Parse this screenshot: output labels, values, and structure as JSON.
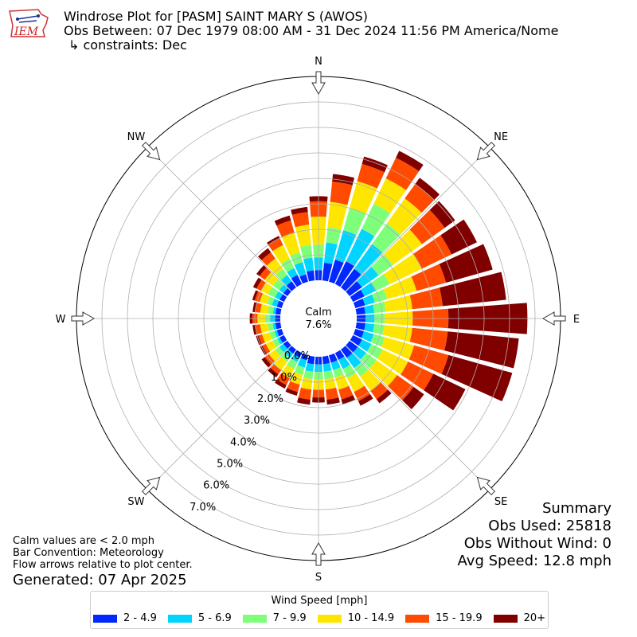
{
  "header": {
    "title": "Windrose Plot for [PASM] SAINT MARY S (AWOS)",
    "obs_between": "Obs Between: 07 Dec 1979 08:00 AM - 31 Dec 2024 11:56 PM America/Nome",
    "constraints": "↳ constraints: Dec"
  },
  "logo": {
    "text": "IEM"
  },
  "summary": {
    "title": "Summary",
    "obs_used": "Obs Used: 25818",
    "obs_without_wind": "Obs Without Wind: 0",
    "avg_speed": "Avg Speed: 12.8 mph"
  },
  "notes": {
    "calm_note": "Calm values are < 2.0 mph",
    "bar_convention": "Bar Convention: Meteorology",
    "flow_note": "Flow arrows relative to plot center."
  },
  "generated": "Generated: 07 Apr 2025",
  "chart_data": {
    "type": "windrose",
    "calm": {
      "label": "Calm",
      "value_text": "7.6%",
      "value": 7.6
    },
    "directions": [
      "N",
      "NW",
      "W",
      "SW",
      "S",
      "SE",
      "E",
      "NE"
    ],
    "radial_labels": [
      "0.0%",
      "1.0%",
      "2.0%",
      "3.0%",
      "4.0%",
      "5.0%",
      "6.0%",
      "7.0%"
    ],
    "radial_ticks": [
      0,
      1,
      2,
      3,
      4,
      5,
      6,
      7
    ],
    "rmax": 8.0,
    "legend_title": "Wind Speed [mph]",
    "bins": [
      {
        "label": "2 - 4.9",
        "color": "#0028ff"
      },
      {
        "label": "5 - 6.9",
        "color": "#00d4ff"
      },
      {
        "label": "7 - 9.9",
        "color": "#7dff7a"
      },
      {
        "label": "10 - 14.9",
        "color": "#ffe600"
      },
      {
        "label": "15 - 19.9",
        "color": "#ff4a00"
      },
      {
        "label": "20+",
        "color": "#800000"
      }
    ],
    "sectors_deg": [
      0,
      10,
      20,
      30,
      40,
      50,
      60,
      70,
      80,
      90,
      100,
      110,
      120,
      130,
      140,
      150,
      160,
      170,
      180,
      190,
      200,
      210,
      220,
      230,
      240,
      250,
      260,
      270,
      280,
      290,
      300,
      310,
      320,
      330,
      340,
      350
    ],
    "cumulative": [
      [
        0.4,
        0.9,
        1.4,
        2.5,
        3.1,
        3.3
      ],
      [
        0.7,
        1.5,
        2.1,
        3.1,
        3.9,
        4.2
      ],
      [
        0.9,
        2.1,
        3.0,
        4.1,
        4.8,
        5.1
      ],
      [
        1.0,
        2.4,
        3.5,
        4.6,
        5.5,
        5.8
      ],
      [
        0.9,
        2.1,
        3.1,
        4.3,
        5.0,
        5.3
      ],
      [
        0.6,
        1.4,
        2.1,
        3.5,
        4.6,
        5.1
      ],
      [
        0.5,
        1.0,
        1.6,
        3.0,
        4.3,
        5.4
      ],
      [
        0.4,
        0.8,
        1.3,
        2.5,
        3.7,
        5.6
      ],
      [
        0.35,
        0.7,
        1.15,
        2.2,
        3.4,
        5.9
      ],
      [
        0.35,
        0.7,
        1.1,
        2.2,
        3.6,
        6.7
      ],
      [
        0.35,
        0.7,
        1.1,
        2.2,
        3.6,
        6.4
      ],
      [
        0.35,
        0.75,
        1.2,
        2.4,
        3.8,
        6.4
      ],
      [
        0.4,
        0.8,
        1.3,
        2.4,
        3.5,
        4.9
      ],
      [
        0.4,
        0.8,
        1.3,
        2.3,
        3.1,
        3.6
      ],
      [
        0.4,
        0.9,
        1.3,
        2.0,
        2.4,
        2.6
      ],
      [
        0.3,
        0.7,
        1.1,
        1.7,
        2.1,
        2.3
      ],
      [
        0.3,
        0.6,
        0.9,
        1.4,
        1.8,
        2.0
      ],
      [
        0.3,
        0.6,
        0.9,
        1.3,
        1.7,
        1.9
      ],
      [
        0.3,
        0.6,
        0.9,
        1.3,
        1.6,
        1.8
      ],
      [
        0.3,
        0.6,
        0.9,
        1.3,
        1.7,
        1.9
      ],
      [
        0.2,
        0.5,
        0.8,
        1.2,
        1.5,
        1.65
      ],
      [
        0.2,
        0.4,
        0.7,
        1.1,
        1.4,
        1.55
      ],
      [
        0.2,
        0.4,
        0.6,
        1.0,
        1.2,
        1.35
      ],
      [
        0.2,
        0.4,
        0.6,
        0.9,
        1.1,
        1.25
      ],
      [
        0.2,
        0.3,
        0.5,
        0.8,
        0.95,
        1.05
      ],
      [
        0.2,
        0.3,
        0.5,
        0.8,
        0.95,
        1.05
      ],
      [
        0.2,
        0.3,
        0.5,
        0.8,
        1.0,
        1.1
      ],
      [
        0.2,
        0.4,
        0.6,
        0.9,
        1.1,
        1.2
      ],
      [
        0.2,
        0.3,
        0.5,
        0.8,
        1.0,
        1.1
      ],
      [
        0.2,
        0.4,
        0.6,
        0.9,
        1.1,
        1.2
      ],
      [
        0.2,
        0.4,
        0.7,
        1.0,
        1.2,
        1.35
      ],
      [
        0.2,
        0.4,
        0.7,
        1.1,
        1.35,
        1.5
      ],
      [
        0.3,
        0.6,
        0.9,
        1.4,
        1.7,
        1.9
      ],
      [
        0.4,
        0.7,
        1.1,
        1.7,
        2.0,
        2.1
      ],
      [
        0.3,
        0.8,
        1.2,
        2.0,
        2.5,
        2.7
      ],
      [
        0.4,
        0.9,
        1.4,
        2.2,
        2.7,
        2.9
      ]
    ]
  }
}
